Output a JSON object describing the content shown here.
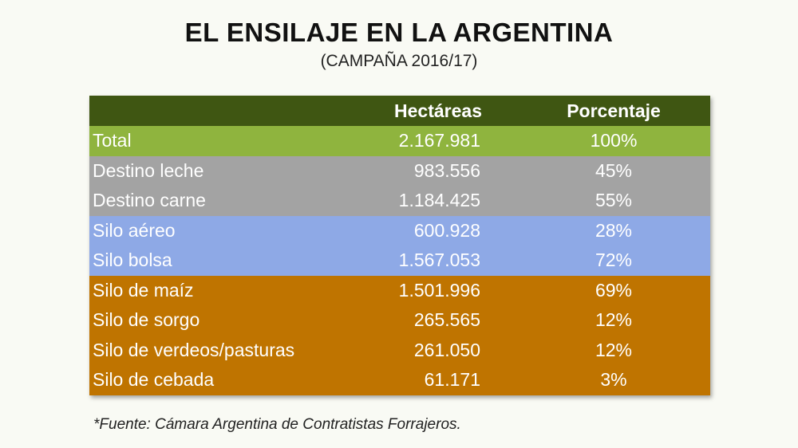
{
  "title": "EL ENSILAJE EN LA ARGENTINA",
  "subtitle": "(CAMPAÑA 2016/17)",
  "colors": {
    "header": "#3f5612",
    "total": "#8fb43e",
    "destino": "#a3a3a3",
    "silo_tipo": "#8ea9e6",
    "silo_cultivo": "#bf7400",
    "text": "#ffffff"
  },
  "table": {
    "headers": [
      "",
      "Hectáreas",
      "Porcentaje"
    ],
    "rows": [
      {
        "label": "Total",
        "hectareas": "2.167.981",
        "porcentaje": "100%"
      },
      {
        "label": "Destino leche",
        "hectareas": "983.556",
        "porcentaje": "45%"
      },
      {
        "label": "Destino carne",
        "hectareas": "1.184.425",
        "porcentaje": "55%"
      },
      {
        "label": "Silo aéreo",
        "hectareas": "600.928",
        "porcentaje": "28%"
      },
      {
        "label": "Silo bolsa",
        "hectareas": "1.567.053",
        "porcentaje": "72%"
      },
      {
        "label": "Silo de maíz",
        "hectareas": "1.501.996",
        "porcentaje": "69%"
      },
      {
        "label": "Silo de sorgo",
        "hectareas": "265.565",
        "porcentaje": "12%"
      },
      {
        "label": "Silo de verdeos/pasturas",
        "hectareas": "261.050",
        "porcentaje": "12%"
      },
      {
        "label": "Silo de cebada",
        "hectareas": "61.171",
        "porcentaje": "3%"
      }
    ]
  },
  "source": "*Fuente: Cámara Argentina de Contratistas Forrajeros."
}
